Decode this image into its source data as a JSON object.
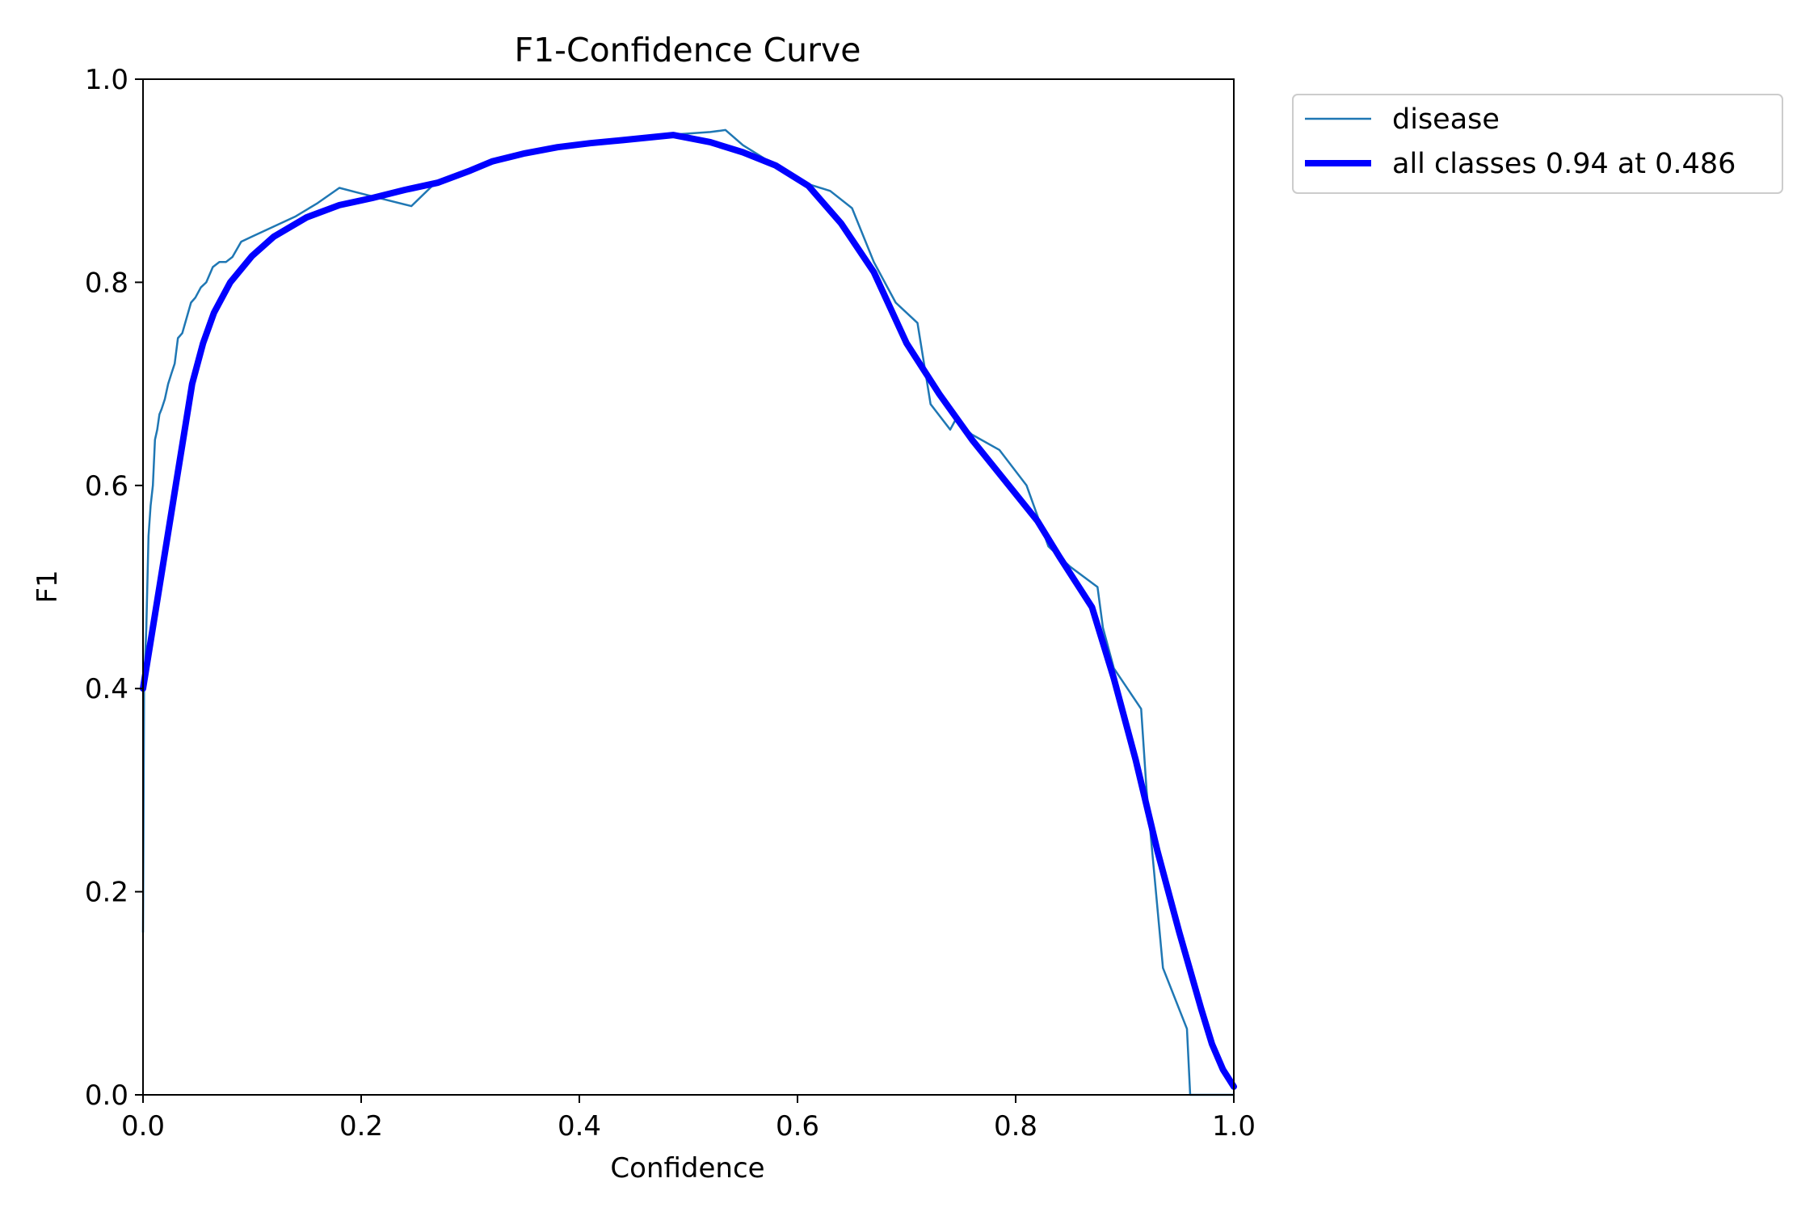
{
  "chart_data": {
    "type": "line",
    "title": "F1-Confidence Curve",
    "xlabel": "Confidence",
    "ylabel": "F1",
    "xlim": [
      0.0,
      1.0
    ],
    "ylim": [
      0.0,
      1.0
    ],
    "xticks": [
      "0.0",
      "0.2",
      "0.4",
      "0.6",
      "0.8",
      "1.0"
    ],
    "yticks": [
      "0.0",
      "0.2",
      "0.4",
      "0.6",
      "0.8",
      "1.0"
    ],
    "grid": false,
    "legend_position": "outside-top-right",
    "series": [
      {
        "name": "disease",
        "color": "#1f77b4",
        "x": [
          0.0,
          0.001,
          0.003,
          0.005,
          0.007,
          0.009,
          0.011,
          0.013,
          0.015,
          0.017,
          0.02,
          0.023,
          0.026,
          0.029,
          0.032,
          0.036,
          0.04,
          0.044,
          0.048,
          0.053,
          0.058,
          0.064,
          0.07,
          0.076,
          0.082,
          0.09,
          0.1,
          0.12,
          0.14,
          0.16,
          0.18,
          0.198,
          0.22,
          0.246,
          0.27,
          0.3,
          0.33,
          0.36,
          0.4,
          0.44,
          0.48,
          0.52,
          0.534,
          0.55,
          0.58,
          0.6,
          0.63,
          0.65,
          0.67,
          0.69,
          0.71,
          0.722,
          0.74,
          0.745,
          0.76,
          0.785,
          0.81,
          0.83,
          0.85,
          0.875,
          0.88,
          0.89,
          0.915,
          0.92,
          0.935,
          0.957,
          0.96,
          0.98,
          1.0
        ],
        "y": [
          0.16,
          0.4,
          0.46,
          0.55,
          0.58,
          0.6,
          0.645,
          0.655,
          0.67,
          0.675,
          0.685,
          0.7,
          0.71,
          0.72,
          0.745,
          0.75,
          0.765,
          0.78,
          0.785,
          0.795,
          0.8,
          0.815,
          0.82,
          0.82,
          0.825,
          0.84,
          0.845,
          0.855,
          0.865,
          0.878,
          0.893,
          0.888,
          0.882,
          0.875,
          0.9,
          0.91,
          0.92,
          0.93,
          0.935,
          0.94,
          0.945,
          0.948,
          0.95,
          0.935,
          0.915,
          0.9,
          0.89,
          0.873,
          0.82,
          0.78,
          0.76,
          0.68,
          0.655,
          0.665,
          0.65,
          0.635,
          0.6,
          0.54,
          0.52,
          0.5,
          0.46,
          0.42,
          0.38,
          0.3,
          0.125,
          0.065,
          0.0,
          0.0,
          0.0
        ]
      },
      {
        "name": "all classes 0.94 at 0.486",
        "color": "#0000ff",
        "x": [
          0.0,
          0.015,
          0.03,
          0.045,
          0.055,
          0.065,
          0.08,
          0.1,
          0.12,
          0.15,
          0.18,
          0.21,
          0.24,
          0.27,
          0.3,
          0.32,
          0.35,
          0.38,
          0.41,
          0.44,
          0.486,
          0.52,
          0.55,
          0.58,
          0.61,
          0.64,
          0.67,
          0.7,
          0.73,
          0.76,
          0.79,
          0.82,
          0.84,
          0.87,
          0.89,
          0.91,
          0.93,
          0.95,
          0.97,
          0.98,
          0.99,
          1.0
        ],
        "y": [
          0.4,
          0.5,
          0.6,
          0.7,
          0.74,
          0.77,
          0.8,
          0.826,
          0.845,
          0.864,
          0.876,
          0.883,
          0.891,
          0.898,
          0.91,
          0.919,
          0.927,
          0.933,
          0.937,
          0.94,
          0.945,
          0.938,
          0.928,
          0.915,
          0.895,
          0.858,
          0.81,
          0.74,
          0.69,
          0.645,
          0.605,
          0.565,
          0.53,
          0.48,
          0.41,
          0.33,
          0.24,
          0.16,
          0.085,
          0.05,
          0.025,
          0.008
        ]
      }
    ]
  }
}
